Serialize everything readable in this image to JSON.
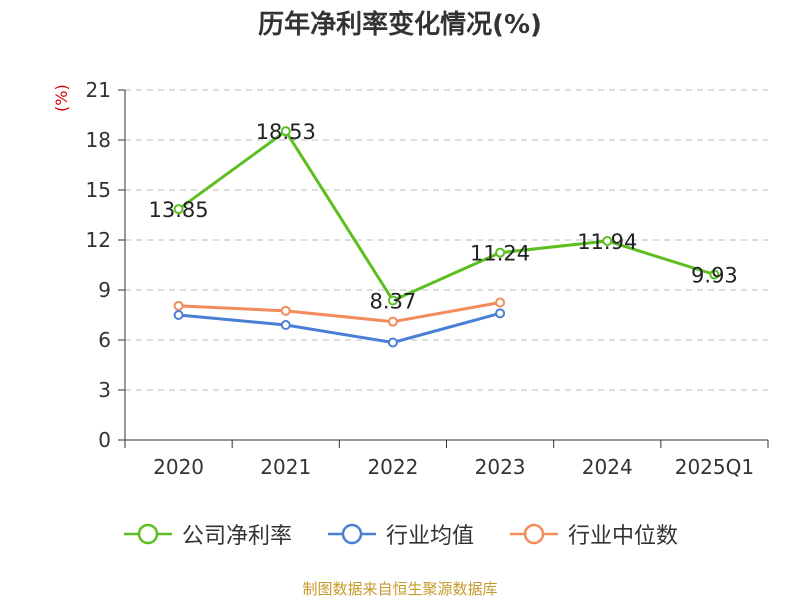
{
  "title": "历年净利率变化情况(%)",
  "footer": "制图数据来自恒生聚源数据库",
  "chart_data": {
    "type": "line",
    "title": "历年净利率变化情况(%)",
    "ylabel": "(%)",
    "xlabel": "",
    "categories": [
      "2020",
      "2021",
      "2022",
      "2023",
      "2024",
      "2025Q1"
    ],
    "ylim": [
      0,
      21
    ],
    "yticks": [
      0,
      3,
      6,
      9,
      12,
      15,
      18,
      21
    ],
    "grid": true,
    "legend_position": "bottom",
    "series": [
      {
        "name": "公司净利率",
        "color": "#5cbf1f",
        "values": [
          13.85,
          18.53,
          8.37,
          11.24,
          11.94,
          9.93
        ],
        "labels": [
          "13.85",
          "18.53",
          "8.37",
          "11.24",
          "11.94",
          "9.93"
        ],
        "show_labels": true
      },
      {
        "name": "行业均值",
        "color": "#4a7fd6",
        "values": [
          7.5,
          6.9,
          5.85,
          7.6,
          null,
          null
        ],
        "show_labels": false
      },
      {
        "name": "行业中位数",
        "color": "#f28c5a",
        "values": [
          8.05,
          7.75,
          7.1,
          8.25,
          null,
          null
        ],
        "show_labels": false
      }
    ]
  }
}
